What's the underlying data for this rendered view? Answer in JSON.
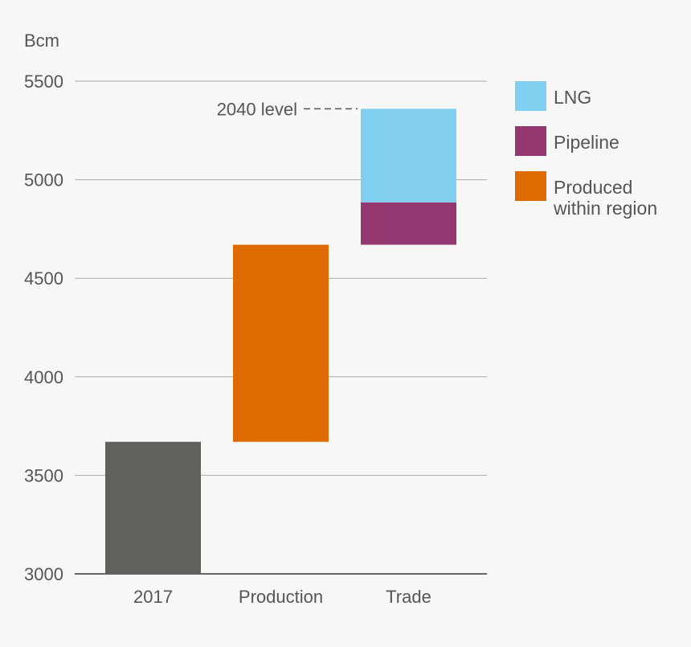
{
  "chart_data": {
    "type": "bar",
    "subtype": "waterfall",
    "ylabel": "Bcm",
    "ylim": [
      3000,
      5500
    ],
    "yticks": [
      3000,
      3500,
      4000,
      4500,
      5000,
      5500
    ],
    "categories": [
      "2017",
      "Production",
      "Trade"
    ],
    "bars": [
      {
        "category": "2017",
        "series": "2017",
        "start": 3000,
        "end": 3670
      },
      {
        "category": "Production",
        "series": "Produced within region",
        "start": 3670,
        "end": 4670
      },
      {
        "category": "Trade",
        "series": "Pipeline",
        "start": 4670,
        "end": 4885
      },
      {
        "category": "Trade",
        "series": "LNG",
        "start": 4885,
        "end": 5360
      }
    ],
    "legend": [
      {
        "name": "LNG",
        "lines": [
          "LNG"
        ],
        "color": "#81cfee"
      },
      {
        "name": "Pipeline",
        "lines": [
          "Pipeline"
        ],
        "color": "#953770"
      },
      {
        "name": "Produced within region",
        "lines": [
          "Produced",
          "within region"
        ],
        "color": "#dd6b00"
      }
    ],
    "colors": {
      "2017": "#60605d",
      "grid": "#aaaaaa",
      "axis": "#666666",
      "text": "#555555"
    },
    "annotation": {
      "text": "2040 level",
      "value": 5360
    }
  }
}
